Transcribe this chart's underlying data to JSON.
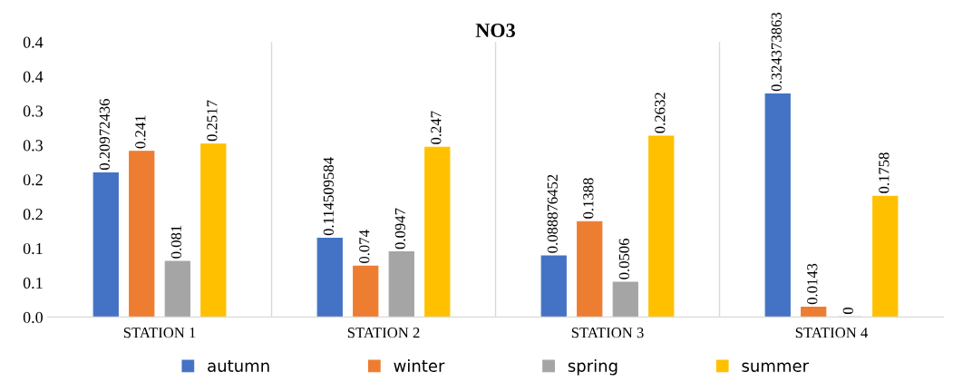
{
  "chart_data": {
    "type": "bar",
    "title": "NO3",
    "categories": [
      "STATION 1",
      "STATION 2",
      "STATION 3",
      "STATION 4"
    ],
    "series": [
      {
        "name": "autumn",
        "color": "#4472c4",
        "values": [
          0.20972436,
          0.114509584,
          0.088876452,
          0.324373863
        ]
      },
      {
        "name": "winter",
        "color": "#ed7d31",
        "values": [
          0.241,
          0.074,
          0.1388,
          0.0143
        ]
      },
      {
        "name": "spring",
        "color": "#a5a5a5",
        "values": [
          0.081,
          0.0947,
          0.0506,
          0
        ]
      },
      {
        "name": "summer",
        "color": "#ffc000",
        "values": [
          0.2517,
          0.247,
          0.2632,
          0.1758
        ]
      }
    ],
    "ylim": [
      0,
      0.4
    ],
    "yticks": [
      {
        "value": 0,
        "label": "0.0"
      },
      {
        "value": 0.05,
        "label": "0.1"
      },
      {
        "value": 0.1,
        "label": "0.1"
      },
      {
        "value": 0.15,
        "label": "0.2"
      },
      {
        "value": 0.2,
        "label": "0.2"
      },
      {
        "value": 0.25,
        "label": "0.3"
      },
      {
        "value": 0.3,
        "label": "0.3"
      },
      {
        "value": 0.35,
        "label": "0.4"
      },
      {
        "value": 0.4,
        "label": "0.4"
      }
    ],
    "data_labels": true,
    "grid": "x",
    "legend": "bottom"
  }
}
